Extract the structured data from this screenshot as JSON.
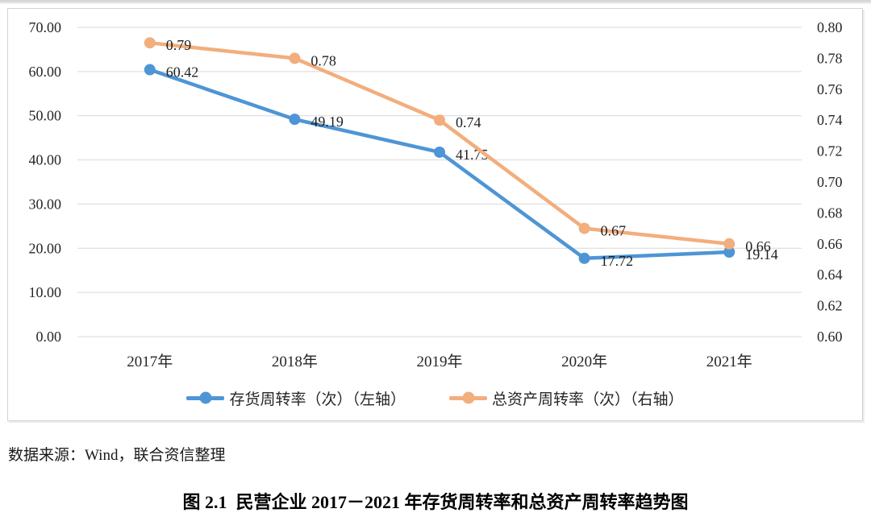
{
  "chart_data": {
    "type": "line",
    "title": "",
    "categories": [
      "2017年",
      "2018年",
      "2019年",
      "2020年",
      "2021年"
    ],
    "series": [
      {
        "name": "存货周转率（次）（左轴）",
        "axis": "left",
        "color": "#4E95D5",
        "values": [
          60.42,
          49.19,
          41.75,
          17.72,
          19.14
        ],
        "data_labels": [
          "60.42",
          "49.19",
          "41.75",
          "17.72",
          "19.14"
        ]
      },
      {
        "name": "总资产周转率（次）（右轴）",
        "axis": "right",
        "color": "#F2AE7D",
        "values": [
          0.79,
          0.78,
          0.74,
          0.67,
          0.66
        ],
        "data_labels": [
          "0.79",
          "0.78",
          "0.74",
          "0.67",
          "0.66"
        ]
      }
    ],
    "left_axis": {
      "min": 0,
      "max": 70,
      "step": 10,
      "tick_labels": [
        "70.00",
        "60.00",
        "50.00",
        "40.00",
        "30.00",
        "20.00",
        "10.00",
        "0.00"
      ]
    },
    "right_axis": {
      "min": 0.6,
      "max": 0.8,
      "step": 0.02,
      "tick_labels": [
        "0.80",
        "0.78",
        "0.76",
        "0.74",
        "0.72",
        "0.70",
        "0.68",
        "0.66",
        "0.64",
        "0.62",
        "0.60"
      ]
    },
    "grid": "horizontal",
    "legend_position": "bottom"
  },
  "colors": {
    "grid": "#D9D9D9",
    "frame_border": "#D2D2D2",
    "text": "#262626",
    "data_label_text": "#1f1f1f"
  },
  "source_note": "数据来源：Wind，联合资信整理",
  "caption": "图 2.1  民营企业 2017－2021 年存货周转率和总资产周转率趋势图"
}
